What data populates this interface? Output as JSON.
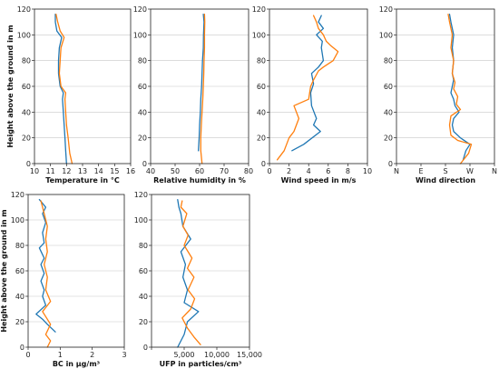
{
  "colors": {
    "series_1": "#1f77b4",
    "series_2": "#ff7f0e"
  },
  "chart_data": [
    {
      "type": "line",
      "xlabel": "Temperature in °C",
      "ylabel": "Height above the ground in m",
      "xlim": [
        10,
        16
      ],
      "ylim": [
        0,
        120
      ],
      "xticks": [
        10,
        11,
        12,
        13,
        14,
        15,
        16
      ],
      "xtick_labels": [
        "10",
        "11",
        "12",
        "13",
        "14",
        "15",
        "16"
      ],
      "yticks": [
        0,
        20,
        40,
        60,
        80,
        100,
        120
      ],
      "ytick_labels": [
        "0",
        "20",
        "40",
        "60",
        "80",
        "100",
        "120"
      ],
      "grid": "horizontal",
      "series": [
        {
          "values": [
            [
              12.0,
              0
            ],
            [
              11.95,
              10
            ],
            [
              11.9,
              20
            ],
            [
              11.85,
              30
            ],
            [
              11.8,
              40
            ],
            [
              11.75,
              50
            ],
            [
              11.8,
              55
            ],
            [
              11.6,
              60
            ],
            [
              11.5,
              70
            ],
            [
              11.5,
              80
            ],
            [
              11.55,
              90
            ],
            [
              11.7,
              98
            ],
            [
              11.4,
              103
            ],
            [
              11.3,
              110
            ],
            [
              11.3,
              116
            ]
          ]
        },
        {
          "values": [
            [
              12.35,
              0
            ],
            [
              12.2,
              8
            ],
            [
              12.1,
              20
            ],
            [
              12.0,
              30
            ],
            [
              11.95,
              40
            ],
            [
              11.9,
              50
            ],
            [
              11.95,
              55
            ],
            [
              11.65,
              60
            ],
            [
              11.55,
              70
            ],
            [
              11.6,
              80
            ],
            [
              11.65,
              90
            ],
            [
              11.85,
              98
            ],
            [
              11.6,
              103
            ],
            [
              11.45,
              110
            ],
            [
              11.35,
              116
            ]
          ]
        }
      ]
    },
    {
      "type": "line",
      "xlabel": "Relative humidity in %",
      "ylabel": "",
      "xlim": [
        40,
        80
      ],
      "ylim": [
        0,
        120
      ],
      "xticks": [
        40,
        50,
        60,
        70,
        80
      ],
      "xtick_labels": [
        "40",
        "50",
        "60",
        "70",
        "80"
      ],
      "yticks": [
        0,
        20,
        40,
        60,
        80,
        100,
        120
      ],
      "ytick_labels": [
        "0",
        "20",
        "40",
        "60",
        "80",
        "100",
        "120"
      ],
      "grid": "horizontal",
      "series": [
        {
          "values": [
            [
              59.5,
              10
            ],
            [
              59.8,
              20
            ],
            [
              60.0,
              30
            ],
            [
              60.3,
              40
            ],
            [
              60.5,
              50
            ],
            [
              60.8,
              60
            ],
            [
              61.0,
              70
            ],
            [
              61.2,
              80
            ],
            [
              61.5,
              90
            ],
            [
              61.6,
              100
            ],
            [
              61.8,
              110
            ],
            [
              61.5,
              116
            ]
          ]
        },
        {
          "values": [
            [
              61.0,
              0
            ],
            [
              60.5,
              10
            ],
            [
              60.5,
              20
            ],
            [
              60.7,
              30
            ],
            [
              61.0,
              40
            ],
            [
              61.3,
              50
            ],
            [
              61.5,
              60
            ],
            [
              61.7,
              70
            ],
            [
              61.8,
              80
            ],
            [
              62.0,
              90
            ],
            [
              62.0,
              100
            ],
            [
              62.1,
              110
            ],
            [
              62.0,
              116
            ]
          ]
        }
      ]
    },
    {
      "type": "line",
      "xlabel": "Wind speed in m/s",
      "ylabel": "",
      "xlim": [
        0,
        10
      ],
      "ylim": [
        0,
        120
      ],
      "xticks": [
        0,
        2,
        4,
        6,
        8,
        10
      ],
      "xtick_labels": [
        "0",
        "2",
        "4",
        "6",
        "8",
        "10"
      ],
      "yticks": [
        0,
        20,
        40,
        60,
        80,
        100,
        120
      ],
      "ytick_labels": [
        "0",
        "20",
        "40",
        "60",
        "80",
        "100",
        "120"
      ],
      "grid": "horizontal",
      "series": [
        {
          "values": [
            [
              2.3,
              10
            ],
            [
              3.5,
              15
            ],
            [
              5.2,
              25
            ],
            [
              4.5,
              30
            ],
            [
              4.8,
              35
            ],
            [
              4.3,
              45
            ],
            [
              4.2,
              55
            ],
            [
              4.5,
              62
            ],
            [
              4.3,
              70
            ],
            [
              5.0,
              75
            ],
            [
              5.5,
              80
            ],
            [
              5.3,
              90
            ],
            [
              5.4,
              95
            ],
            [
              4.8,
              100
            ],
            [
              5.5,
              105
            ],
            [
              5.0,
              110
            ],
            [
              5.3,
              115
            ]
          ]
        },
        {
          "values": [
            [
              0.8,
              3
            ],
            [
              1.5,
              10
            ],
            [
              2.0,
              20
            ],
            [
              2.5,
              25
            ],
            [
              3.0,
              35
            ],
            [
              2.5,
              45
            ],
            [
              4.0,
              50
            ],
            [
              4.2,
              60
            ],
            [
              4.5,
              65
            ],
            [
              5.0,
              72
            ],
            [
              5.5,
              75
            ],
            [
              6.5,
              80
            ],
            [
              7.0,
              87
            ],
            [
              6.2,
              92
            ],
            [
              5.8,
              95
            ],
            [
              5.5,
              100
            ],
            [
              5.0,
              105
            ],
            [
              4.8,
              110
            ],
            [
              4.5,
              115
            ]
          ]
        }
      ]
    },
    {
      "type": "line",
      "xlabel": "Wind direction",
      "ylabel": "",
      "xlim": [
        0,
        360
      ],
      "ylim": [
        0,
        120
      ],
      "xticks": [
        0,
        90,
        180,
        270,
        360
      ],
      "xtick_labels": [
        "N",
        "E",
        "S",
        "W",
        "N"
      ],
      "yticks": [
        0,
        20,
        40,
        60,
        80,
        100,
        120
      ],
      "ytick_labels": [
        "0",
        "20",
        "40",
        "60",
        "80",
        "100",
        "120"
      ],
      "grid": "horizontal",
      "series": [
        {
          "values": [
            [
              245,
              3
            ],
            [
              255,
              10
            ],
            [
              270,
              15
            ],
            [
              235,
              20
            ],
            [
              210,
              25
            ],
            [
              205,
              30
            ],
            [
              210,
              35
            ],
            [
              230,
              40
            ],
            [
              215,
              45
            ],
            [
              210,
              50
            ],
            [
              200,
              55
            ],
            [
              205,
              60
            ],
            [
              210,
              65
            ],
            [
              205,
              70
            ],
            [
              210,
              80
            ],
            [
              205,
              90
            ],
            [
              210,
              100
            ],
            [
              200,
              110
            ],
            [
              195,
              116
            ]
          ]
        },
        {
          "values": [
            [
              235,
              0
            ],
            [
              265,
              8
            ],
            [
              275,
              15
            ],
            [
              225,
              18
            ],
            [
              200,
              22
            ],
            [
              195,
              30
            ],
            [
              200,
              37
            ],
            [
              235,
              42
            ],
            [
              220,
              46
            ],
            [
              225,
              52
            ],
            [
              210,
              58
            ],
            [
              215,
              63
            ],
            [
              205,
              70
            ],
            [
              210,
              80
            ],
            [
              200,
              90
            ],
            [
              205,
              100
            ],
            [
              195,
              110
            ],
            [
              190,
              116
            ]
          ]
        }
      ]
    },
    {
      "type": "line",
      "xlabel": "BC in µg/m³",
      "ylabel": "Height above the ground in m",
      "xlim": [
        0,
        3
      ],
      "ylim": [
        0,
        120
      ],
      "xticks": [
        0,
        1,
        2,
        3
      ],
      "xtick_labels": [
        "0",
        "1",
        "2",
        "3"
      ],
      "yticks": [
        0,
        20,
        40,
        60,
        80,
        100,
        120
      ],
      "ytick_labels": [
        "0",
        "20",
        "40",
        "60",
        "80",
        "100",
        "120"
      ],
      "grid": "horizontal",
      "series": [
        {
          "values": [
            [
              0.85,
              12
            ],
            [
              0.6,
              18
            ],
            [
              0.45,
              22
            ],
            [
              0.25,
              26
            ],
            [
              0.55,
              33
            ],
            [
              0.45,
              40
            ],
            [
              0.5,
              45
            ],
            [
              0.4,
              52
            ],
            [
              0.5,
              58
            ],
            [
              0.4,
              65
            ],
            [
              0.5,
              70
            ],
            [
              0.35,
              78
            ],
            [
              0.5,
              82
            ],
            [
              0.45,
              90
            ],
            [
              0.55,
              98
            ],
            [
              0.45,
              105
            ],
            [
              0.55,
              110
            ],
            [
              0.35,
              116
            ]
          ]
        },
        {
          "values": [
            [
              0.6,
              0
            ],
            [
              0.7,
              5
            ],
            [
              0.55,
              10
            ],
            [
              0.7,
              18
            ],
            [
              0.45,
              28
            ],
            [
              0.7,
              36
            ],
            [
              0.55,
              45
            ],
            [
              0.6,
              55
            ],
            [
              0.5,
              65
            ],
            [
              0.6,
              75
            ],
            [
              0.55,
              85
            ],
            [
              0.6,
              95
            ],
            [
              0.5,
              105
            ],
            [
              0.45,
              110
            ],
            [
              0.4,
              115
            ]
          ]
        }
      ]
    },
    {
      "type": "line",
      "xlabel": "UFP in particles/cm³",
      "ylabel": "",
      "xlim": [
        0,
        15000
      ],
      "ylim": [
        0,
        120
      ],
      "xticks": [
        0,
        5000,
        10000,
        15000
      ],
      "xtick_labels": [
        "",
        "5,000",
        "10,000",
        "15,000"
      ],
      "yticks": [
        0,
        20,
        40,
        60,
        80,
        100,
        120
      ],
      "ytick_labels": [
        "0",
        "20",
        "40",
        "60",
        "80",
        "100",
        "120"
      ],
      "grid": "horizontal",
      "series": [
        {
          "values": [
            [
              4000,
              0
            ],
            [
              5000,
              10
            ],
            [
              5500,
              20
            ],
            [
              7200,
              28
            ],
            [
              5000,
              35
            ],
            [
              5500,
              45
            ],
            [
              4800,
              55
            ],
            [
              5200,
              65
            ],
            [
              4500,
              75
            ],
            [
              6000,
              85
            ],
            [
              4800,
              95
            ],
            [
              4500,
              105
            ],
            [
              4200,
              110
            ],
            [
              4000,
              116
            ]
          ]
        },
        {
          "values": [
            [
              7500,
              2
            ],
            [
              6500,
              8
            ],
            [
              5500,
              15
            ],
            [
              4700,
              23
            ],
            [
              6000,
              30
            ],
            [
              6600,
              38
            ],
            [
              5600,
              45
            ],
            [
              6500,
              55
            ],
            [
              5500,
              62
            ],
            [
              6200,
              70
            ],
            [
              5000,
              80
            ],
            [
              5600,
              88
            ],
            [
              4800,
              95
            ],
            [
              5400,
              105
            ],
            [
              4500,
              110
            ],
            [
              4700,
              115
            ]
          ]
        }
      ]
    }
  ]
}
